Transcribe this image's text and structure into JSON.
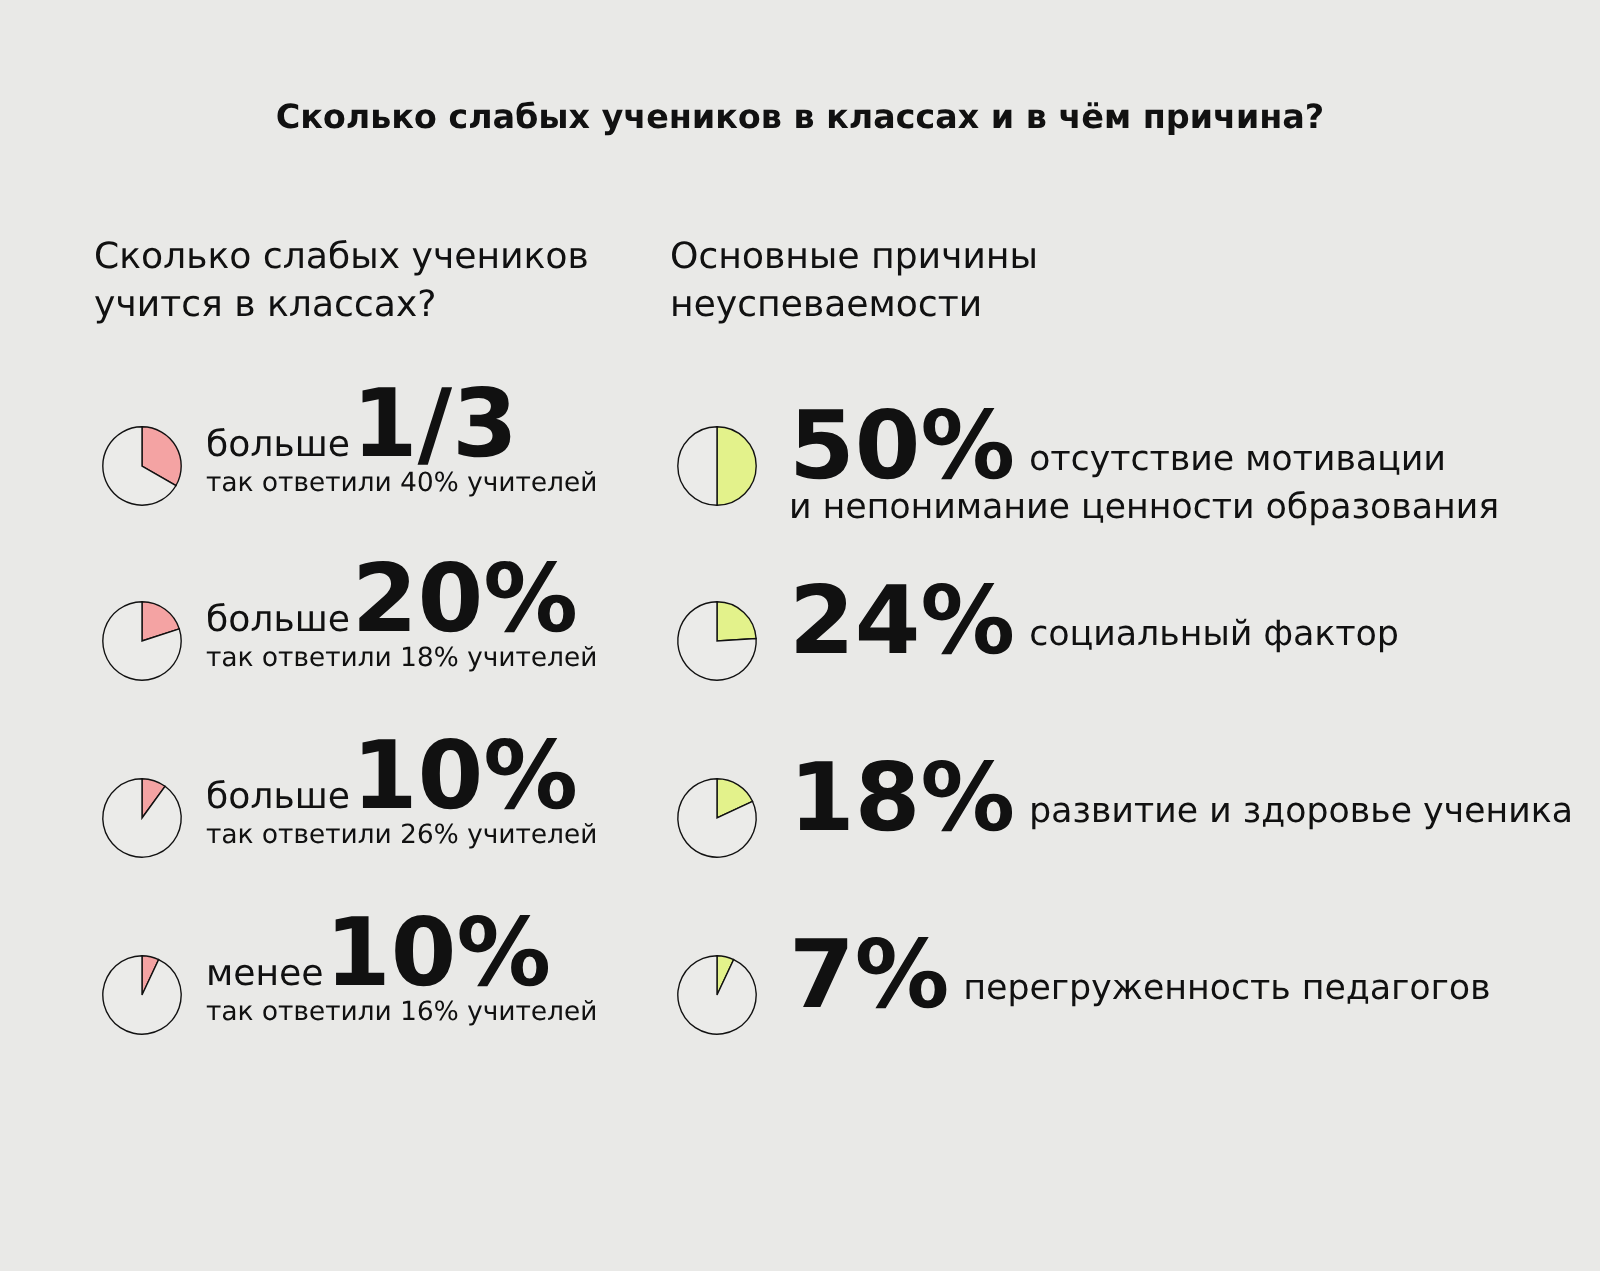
{
  "chart_data": [
    {
      "type": "other",
      "title": "Сколько слабых учеников в классах и в чём причина?",
      "annotations": [
        "Сколько слабых учеников\nучится в классах?",
        "Основные причины\nнеуспеваемости"
      ]
    },
    {
      "type": "pie",
      "categories": [
        null,
        null
      ],
      "values": [
        33.3,
        66.7
      ],
      "colors": [
        "#f4a3a3",
        "#ebebe9"
      ],
      "annotations": [
        "больше",
        "1/3",
        "так ответили 40% учителей"
      ]
    },
    {
      "type": "pie",
      "categories": [
        null,
        null
      ],
      "values": [
        20,
        80
      ],
      "colors": [
        "#f4a3a3",
        "#ebebe9"
      ],
      "annotations": [
        "больше",
        "20%",
        "так ответили 18% учителей"
      ]
    },
    {
      "type": "pie",
      "categories": [
        null,
        null
      ],
      "values": [
        10,
        90
      ],
      "colors": [
        "#f4a3a3",
        "#ebebe9"
      ],
      "annotations": [
        "больше",
        "10%",
        "так ответили 26% учителей"
      ]
    },
    {
      "type": "pie",
      "categories": [
        null,
        null
      ],
      "values": [
        7,
        93
      ],
      "colors": [
        "#f4a3a3",
        "#ebebe9"
      ],
      "annotations": [
        "менее",
        "10%",
        "так ответили 16% учителей"
      ]
    },
    {
      "type": "pie",
      "categories": [
        null,
        null
      ],
      "values": [
        50,
        50
      ],
      "colors": [
        "#e3f28b",
        "#ebebe9"
      ],
      "value_labels": [
        "50%",
        null
      ],
      "annotations": [
        "отсутствие мотивации\nи непонимание ценности образования"
      ]
    },
    {
      "type": "pie",
      "categories": [
        null,
        null
      ],
      "values": [
        24,
        76
      ],
      "colors": [
        "#e3f28b",
        "#ebebe9"
      ],
      "value_labels": [
        "24%",
        null
      ],
      "annotations": [
        "социальный фактор"
      ]
    },
    {
      "type": "pie",
      "categories": [
        null,
        null
      ],
      "values": [
        18,
        82
      ],
      "colors": [
        "#e3f28b",
        "#ebebe9"
      ],
      "value_labels": [
        "18%",
        null
      ],
      "annotations": [
        "развитие и здоровье ученика"
      ]
    },
    {
      "type": "pie",
      "categories": [
        null,
        null
      ],
      "values": [
        7,
        93
      ],
      "colors": [
        "#e3f28b",
        "#ebebe9"
      ],
      "value_labels": [
        "7%",
        null
      ],
      "annotations": [
        "перегруженность педагогов"
      ]
    }
  ]
}
